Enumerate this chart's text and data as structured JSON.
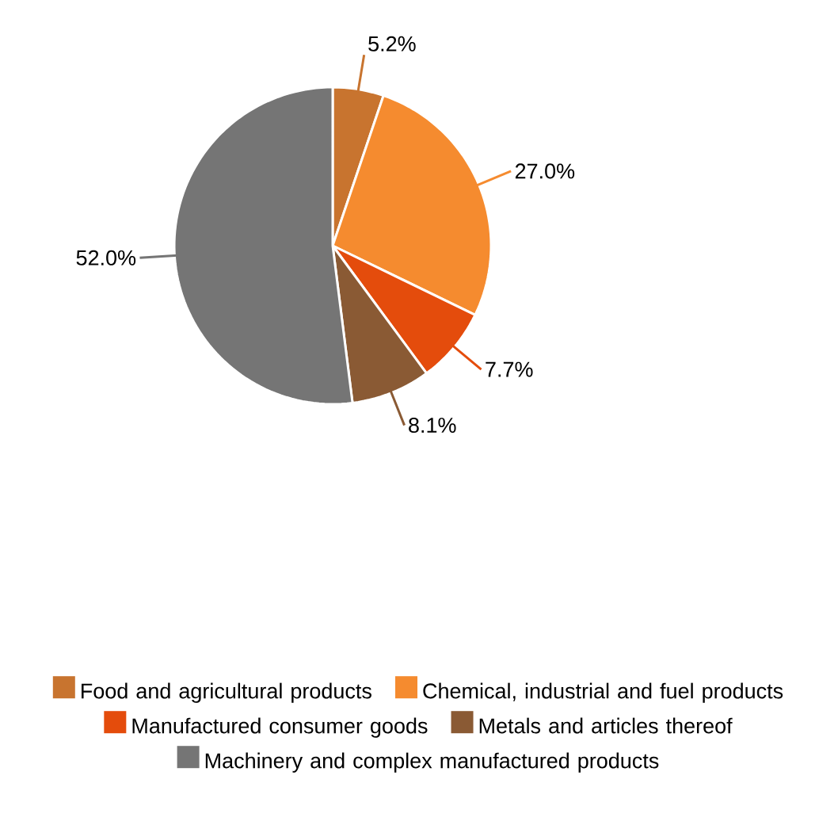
{
  "chart_data": {
    "type": "pie",
    "categories": [
      "Food and agricultural products",
      "Chemical, industrial and fuel products",
      "Manufactured consumer goods",
      "Metals and articles thereof",
      "Machinery and complex manufactured products"
    ],
    "values": [
      5.2,
      27.0,
      7.7,
      8.1,
      52.0
    ],
    "colors": [
      "#c8742f",
      "#f58b2f",
      "#e44c0c",
      "#8a5a34",
      "#757575"
    ],
    "value_labels": [
      "5.2%",
      "27.0%",
      "7.7%",
      "8.1%",
      "52.0%"
    ],
    "legend": "bottom"
  }
}
